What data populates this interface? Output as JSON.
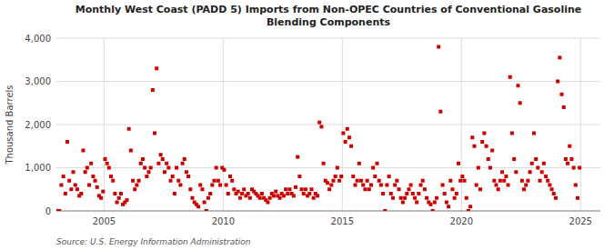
{
  "chart_data": {
    "type": "scatter",
    "title": "Monthly West Coast (PADD 5) Imports from Non-OPEC Countries of Conventional Gasoline\nBlending Components",
    "y_label": "Thousand Barrels",
    "source": "Source: U.S. Energy Information Administration",
    "color": "#cc0000",
    "marker": "square",
    "grid": true,
    "xlim": [
      2003.0,
      2025.83
    ],
    "ylim": [
      0,
      4000
    ],
    "xticks": [
      2005,
      2010,
      2015,
      2020,
      2025
    ],
    "yticks": [
      0,
      {
        "value": 1000,
        "label": "1,000"
      },
      {
        "value": 2000,
        "label": "2,000"
      },
      {
        "value": 3000,
        "label": "3,000"
      },
      {
        "value": 4000,
        "label": "4,000"
      }
    ],
    "x": [
      2003.0416666666667,
      2003.125,
      2003.2083333333333,
      2003.2916666666667,
      2003.375,
      2003.4583333333333,
      2003.5416666666667,
      2003.625,
      2003.7083333333333,
      2003.7916666666667,
      2003.875,
      2003.9583333333333,
      2004.0416666666667,
      2004.125,
      2004.2083333333333,
      2004.2916666666667,
      2004.375,
      2004.4583333333333,
      2004.5416666666667,
      2004.625,
      2004.7083333333333,
      2004.7916666666667,
      2004.875,
      2004.9583333333333,
      2005.0416666666667,
      2005.125,
      2005.2083333333333,
      2005.2916666666667,
      2005.375,
      2005.4583333333333,
      2005.5416666666667,
      2005.625,
      2005.7083333333333,
      2005.7916666666667,
      2005.875,
      2005.9583333333333,
      2006.0416666666667,
      2006.125,
      2006.2083333333333,
      2006.2916666666667,
      2006.375,
      2006.4583333333333,
      2006.5416666666667,
      2006.625,
      2006.7083333333333,
      2006.7916666666667,
      2006.875,
      2006.9583333333333,
      2007.0416666666667,
      2007.125,
      2007.2083333333333,
      2007.2916666666667,
      2007.375,
      2007.4583333333333,
      2007.5416666666667,
      2007.625,
      2007.7083333333333,
      2007.7916666666667,
      2007.875,
      2007.9583333333333,
      2008.0416666666667,
      2008.125,
      2008.2083333333333,
      2008.2916666666667,
      2008.375,
      2008.4583333333333,
      2008.5416666666667,
      2008.625,
      2008.7083333333333,
      2008.7916666666667,
      2008.875,
      2008.9583333333333,
      2009.0416666666667,
      2009.125,
      2009.2083333333333,
      2009.2916666666667,
      2009.375,
      2009.4583333333333,
      2009.5416666666667,
      2009.625,
      2009.7083333333333,
      2009.7916666666667,
      2009.875,
      2009.9583333333333,
      2010.0416666666667,
      2010.125,
      2010.2083333333333,
      2010.2916666666667,
      2010.375,
      2010.4583333333333,
      2010.5416666666667,
      2010.625,
      2010.7083333333333,
      2010.7916666666667,
      2010.875,
      2010.9583333333333,
      2011.0416666666667,
      2011.125,
      2011.2083333333333,
      2011.2916666666667,
      2011.375,
      2011.4583333333333,
      2011.5416666666667,
      2011.625,
      2011.7083333333333,
      2011.7916666666667,
      2011.875,
      2011.9583333333333,
      2012.0416666666667,
      2012.125,
      2012.2083333333333,
      2012.2916666666667,
      2012.375,
      2012.4583333333333,
      2012.5416666666667,
      2012.625,
      2012.7083333333333,
      2012.7916666666667,
      2012.875,
      2012.9583333333333,
      2013.0416666666667,
      2013.125,
      2013.2083333333333,
      2013.2916666666667,
      2013.375,
      2013.4583333333333,
      2013.5416666666667,
      2013.625,
      2013.7083333333333,
      2013.7916666666667,
      2013.875,
      2013.9583333333333,
      2014.0416666666667,
      2014.125,
      2014.2083333333333,
      2014.2916666666667,
      2014.375,
      2014.4583333333333,
      2014.5416666666667,
      2014.625,
      2014.7083333333333,
      2014.7916666666667,
      2014.875,
      2014.9583333333333,
      2015.0416666666667,
      2015.125,
      2015.2083333333333,
      2015.2916666666667,
      2015.375,
      2015.4583333333333,
      2015.5416666666667,
      2015.625,
      2015.7083333333333,
      2015.7916666666667,
      2015.875,
      2015.9583333333333,
      2016.0416666666667,
      2016.125,
      2016.2083333333333,
      2016.2916666666667,
      2016.375,
      2016.4583333333333,
      2016.5416666666667,
      2016.625,
      2016.7083333333333,
      2016.7916666666667,
      2016.875,
      2016.9583333333333,
      2017.0416666666667,
      2017.125,
      2017.2083333333333,
      2017.2916666666667,
      2017.375,
      2017.4583333333333,
      2017.5416666666667,
      2017.625,
      2017.7083333333333,
      2017.7916666666667,
      2017.875,
      2017.9583333333333,
      2018.0416666666667,
      2018.125,
      2018.2083333333333,
      2018.2916666666667,
      2018.375,
      2018.4583333333333,
      2018.5416666666667,
      2018.625,
      2018.7083333333333,
      2018.7916666666667,
      2018.875,
      2018.9583333333333,
      2019.0416666666667,
      2019.125,
      2019.2083333333333,
      2019.2916666666667,
      2019.375,
      2019.4583333333333,
      2019.5416666666667,
      2019.625,
      2019.7083333333333,
      2019.7916666666667,
      2019.875,
      2019.9583333333333,
      2020.0416666666667,
      2020.125,
      2020.2083333333333,
      2020.2916666666667,
      2020.375,
      2020.4583333333333,
      2020.5416666666667,
      2020.625,
      2020.7083333333333,
      2020.7916666666667,
      2020.875,
      2020.9583333333333,
      2021.0416666666667,
      2021.125,
      2021.2083333333333,
      2021.2916666666667,
      2021.375,
      2021.4583333333333,
      2021.5416666666667,
      2021.625,
      2021.7083333333333,
      2021.7916666666667,
      2021.875,
      2021.9583333333333,
      2022.0416666666667,
      2022.125,
      2022.2083333333333,
      2022.2916666666667,
      2022.375,
      2022.4583333333333,
      2022.5416666666667,
      2022.625,
      2022.7083333333333,
      2022.7916666666667,
      2022.875,
      2022.9583333333333,
      2023.0416666666667,
      2023.125,
      2023.2083333333333,
      2023.2916666666667,
      2023.375,
      2023.4583333333333,
      2023.5416666666667,
      2023.625,
      2023.7083333333333,
      2023.7916666666667,
      2023.875,
      2023.9583333333333,
      2024.0416666666667,
      2024.125,
      2024.2083333333333,
      2024.2916666666667,
      2024.375,
      2024.4583333333333,
      2024.5416666666667,
      2024.625,
      2024.7083333333333,
      2024.7916666666667,
      2024.875,
      2024.9583333333333
    ],
    "values": [
      0,
      0,
      600,
      800,
      400,
      1600,
      700,
      500,
      900,
      600,
      500,
      350,
      400,
      1400,
      900,
      1000,
      600,
      1100,
      800,
      700,
      550,
      350,
      300,
      450,
      1200,
      1100,
      1000,
      800,
      700,
      400,
      200,
      300,
      400,
      150,
      200,
      250,
      1900,
      1400,
      700,
      500,
      600,
      700,
      1100,
      1200,
      1000,
      800,
      900,
      1000,
      2800,
      1800,
      3300,
      1100,
      1300,
      1200,
      900,
      1100,
      1000,
      700,
      800,
      400,
      1000,
      700,
      600,
      1100,
      1200,
      900,
      800,
      500,
      300,
      200,
      150,
      100,
      600,
      500,
      200,
      0,
      300,
      400,
      600,
      700,
      1000,
      700,
      600,
      1000,
      950,
      600,
      400,
      800,
      700,
      500,
      400,
      450,
      300,
      400,
      500,
      350,
      400,
      300,
      500,
      450,
      400,
      350,
      300,
      400,
      300,
      250,
      200,
      300,
      400,
      350,
      450,
      350,
      300,
      400,
      350,
      500,
      400,
      500,
      400,
      350,
      550,
      1250,
      800,
      500,
      400,
      500,
      350,
      400,
      500,
      300,
      400,
      350,
      2050,
      1950,
      1100,
      700,
      650,
      500,
      600,
      700,
      800,
      1000,
      700,
      800,
      1800,
      1600,
      1900,
      1700,
      1500,
      800,
      600,
      700,
      1100,
      700,
      600,
      500,
      700,
      500,
      600,
      1000,
      800,
      1100,
      700,
      600,
      400,
      0,
      600,
      800,
      400,
      300,
      600,
      700,
      500,
      300,
      200,
      300,
      400,
      500,
      600,
      400,
      300,
      200,
      400,
      600,
      700,
      500,
      300,
      200,
      150,
      0,
      200,
      300,
      3800,
      2300,
      600,
      400,
      200,
      100,
      700,
      500,
      300,
      400,
      1100,
      700,
      800,
      700,
      300,
      0,
      100,
      1700,
      1500,
      600,
      1000,
      500,
      1600,
      1800,
      1500,
      1200,
      1000,
      1400,
      700,
      600,
      500,
      700,
      900,
      700,
      800,
      600,
      3100,
      1800,
      1200,
      900,
      2900,
      2500,
      700,
      500,
      600,
      700,
      900,
      1100,
      1800,
      1200,
      1000,
      700,
      900,
      1100,
      800,
      700,
      600,
      500,
      400,
      300,
      3000,
      3550,
      2700,
      2400,
      1200,
      1100,
      1500,
      1200,
      1000,
      600,
      300,
      1000
    ]
  }
}
